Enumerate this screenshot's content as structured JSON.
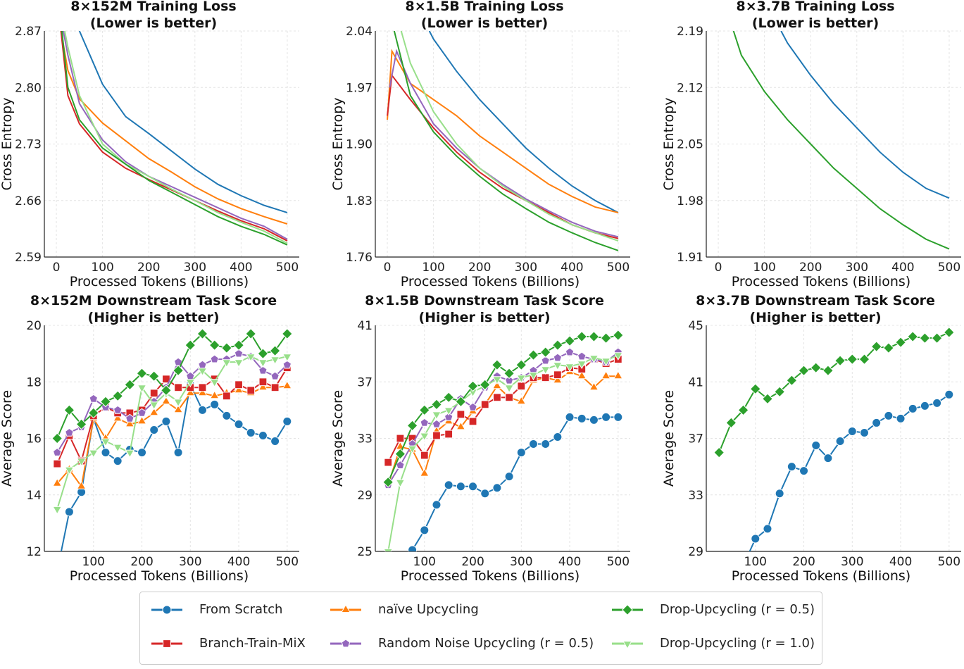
{
  "colors": {
    "from_scratch": "#1f77b4",
    "naive": "#ff7f0e",
    "btx": "#d62728",
    "rnu": "#9467bd",
    "drop05": "#2ca02c",
    "drop10": "#98df8a"
  },
  "legend": [
    {
      "key": "from_scratch",
      "label": "From Scratch",
      "marker": "circle"
    },
    {
      "key": "naive",
      "label": "naïve Upcycling",
      "marker": "triangle"
    },
    {
      "key": "drop05",
      "label": "Drop-Upcycling (r = 0.5)",
      "marker": "diamond"
    },
    {
      "key": "btx",
      "label": "Branch-Train-MiX",
      "marker": "square"
    },
    {
      "key": "rnu",
      "label": "Random Noise Upcycling (r = 0.5)",
      "marker": "pentagon"
    },
    {
      "key": "drop10",
      "label": "Drop-Upcycling (r = 1.0)",
      "marker": "triangle-down"
    }
  ],
  "chart_data": [
    {
      "type": "line",
      "title": "8×152M Training Loss",
      "subtitle": "(Lower is better)",
      "xlabel": "Processed Tokens (Billions)",
      "ylabel": "Cross Entropy",
      "xlim": [
        -26,
        526
      ],
      "ylim": [
        2.59,
        2.87
      ],
      "xticks": [
        0,
        100,
        200,
        300,
        400,
        500
      ],
      "yticks": [
        "2.59",
        "2.66",
        "2.73",
        "2.80",
        "2.87"
      ],
      "grid": true,
      "series": [
        {
          "key": "from_scratch",
          "x": [
            50,
            100,
            150,
            200,
            250,
            300,
            350,
            400,
            450,
            500
          ],
          "y": [
            2.87,
            2.804,
            2.764,
            2.743,
            2.721,
            2.699,
            2.68,
            2.666,
            2.654,
            2.645
          ]
        },
        {
          "key": "naive",
          "x": [
            10,
            25,
            50,
            100,
            150,
            200,
            250,
            300,
            350,
            400,
            450,
            500
          ],
          "y": [
            2.87,
            2.821,
            2.786,
            2.756,
            2.734,
            2.712,
            2.695,
            2.677,
            2.662,
            2.65,
            2.64,
            2.631
          ]
        },
        {
          "key": "btx",
          "x": [
            10,
            25,
            50,
            100,
            150,
            200,
            250,
            300,
            350,
            400,
            450,
            500
          ],
          "y": [
            2.87,
            2.79,
            2.755,
            2.72,
            2.7,
            2.686,
            2.673,
            2.66,
            2.647,
            2.635,
            2.625,
            2.61
          ]
        },
        {
          "key": "rnu",
          "x": [
            15,
            25,
            50,
            100,
            150,
            200,
            250,
            300,
            350,
            400,
            450,
            500
          ],
          "y": [
            2.87,
            2.84,
            2.78,
            2.735,
            2.708,
            2.69,
            2.677,
            2.664,
            2.651,
            2.638,
            2.628,
            2.612
          ]
        },
        {
          "key": "drop10",
          "x": [
            18,
            25,
            50,
            100,
            150,
            200,
            250,
            300,
            350,
            400,
            450,
            500
          ],
          "y": [
            2.87,
            2.85,
            2.79,
            2.73,
            2.705,
            2.69,
            2.674,
            2.66,
            2.645,
            2.633,
            2.622,
            2.607
          ]
        },
        {
          "key": "drop05",
          "x": [
            12,
            25,
            50,
            100,
            150,
            200,
            250,
            300,
            350,
            400,
            450,
            500
          ],
          "y": [
            2.87,
            2.8,
            2.76,
            2.725,
            2.705,
            2.685,
            2.67,
            2.655,
            2.64,
            2.628,
            2.618,
            2.605
          ]
        }
      ]
    },
    {
      "type": "line",
      "title": "8×1.5B Training Loss",
      "subtitle": "(Lower is better)",
      "xlabel": "Processed Tokens (Billions)",
      "ylabel": "Cross Entropy",
      "xlim": [
        -26,
        526
      ],
      "ylim": [
        1.76,
        2.04
      ],
      "xticks": [
        0,
        100,
        200,
        300,
        400,
        500
      ],
      "yticks": [
        "1.76",
        "1.83",
        "1.90",
        "1.97",
        "2.04"
      ],
      "grid": true,
      "series": [
        {
          "key": "from_scratch",
          "x": [
            91,
            100,
            150,
            200,
            250,
            300,
            350,
            400,
            450,
            500
          ],
          "y": [
            2.04,
            2.03,
            1.99,
            1.955,
            1.925,
            1.895,
            1.87,
            1.848,
            1.83,
            1.815
          ]
        },
        {
          "key": "naive",
          "x": [
            0,
            10,
            50,
            100,
            150,
            200,
            250,
            300,
            350,
            400,
            450,
            500
          ],
          "y": [
            1.93,
            2.015,
            1.975,
            1.955,
            1.935,
            1.91,
            1.89,
            1.87,
            1.85,
            1.835,
            1.822,
            1.815
          ]
        },
        {
          "key": "btx",
          "x": [
            0,
            10,
            50,
            100,
            150,
            200,
            250,
            300,
            350,
            400,
            450,
            500
          ],
          "y": [
            1.935,
            1.985,
            1.955,
            1.92,
            1.89,
            1.865,
            1.845,
            1.83,
            1.815,
            1.8,
            1.79,
            1.783
          ]
        },
        {
          "key": "rnu",
          "x": [
            5,
            20,
            50,
            100,
            150,
            200,
            250,
            300,
            350,
            400,
            450,
            500
          ],
          "y": [
            1.97,
            2.015,
            1.975,
            1.925,
            1.895,
            1.87,
            1.85,
            1.832,
            1.817,
            1.803,
            1.792,
            1.785
          ]
        },
        {
          "key": "drop10",
          "x": [
            30,
            50,
            100,
            150,
            200,
            250,
            300,
            350,
            400,
            450,
            500
          ],
          "y": [
            2.04,
            2.0,
            1.94,
            1.9,
            1.87,
            1.848,
            1.83,
            1.813,
            1.8,
            1.79,
            1.78
          ]
        },
        {
          "key": "drop05",
          "x": [
            15,
            50,
            100,
            150,
            200,
            250,
            300,
            350,
            400,
            450,
            500
          ],
          "y": [
            2.04,
            1.96,
            1.915,
            1.885,
            1.86,
            1.838,
            1.82,
            1.803,
            1.79,
            1.778,
            1.768
          ]
        }
      ]
    },
    {
      "type": "line",
      "title": "8×3.7B Training Loss",
      "subtitle": "(Lower is better)",
      "xlabel": "Processed Tokens (Billions)",
      "ylabel": "Cross Entropy",
      "xlim": [
        -26,
        526
      ],
      "ylim": [
        1.91,
        2.19
      ],
      "xticks": [
        0,
        100,
        200,
        300,
        400,
        500
      ],
      "yticks": [
        "1.91",
        "1.98",
        "2.05",
        "2.12",
        "2.19"
      ],
      "grid": true,
      "series": [
        {
          "key": "from_scratch",
          "x": [
            136,
            150,
            200,
            250,
            300,
            350,
            400,
            450,
            500
          ],
          "y": [
            2.19,
            2.175,
            2.135,
            2.1,
            2.07,
            2.04,
            2.015,
            1.995,
            1.983
          ]
        },
        {
          "key": "drop05",
          "x": [
            33,
            50,
            100,
            150,
            200,
            250,
            300,
            350,
            400,
            450,
            500
          ],
          "y": [
            2.19,
            2.16,
            2.115,
            2.08,
            2.05,
            2.02,
            1.995,
            1.97,
            1.95,
            1.932,
            1.92
          ]
        }
      ]
    },
    {
      "type": "line",
      "title": "8×152M Downstream Task Score",
      "subtitle": "(Higher is better)",
      "xlabel": "Processed Tokens (Billions)",
      "ylabel": "Average Score",
      "xlim": [
        -1.5,
        525
      ],
      "ylim": [
        12,
        20
      ],
      "xticks": [
        100,
        200,
        300,
        400,
        500
      ],
      "yticks": [
        "12",
        "14",
        "16",
        "18",
        "20"
      ],
      "grid": true,
      "x": [
        25,
        50,
        75,
        100,
        125,
        150,
        175,
        200,
        225,
        250,
        275,
        300,
        325,
        350,
        375,
        400,
        425,
        450,
        475,
        500
      ],
      "series": [
        {
          "key": "from_scratch",
          "y": [
            11.3,
            13.4,
            14.1,
            16.7,
            15.5,
            15.2,
            15.6,
            15.5,
            16.3,
            16.6,
            15.5,
            17.9,
            17.0,
            17.2,
            16.8,
            16.5,
            16.2,
            16.1,
            15.9,
            16.6
          ]
        },
        {
          "key": "naive",
          "y": [
            14.4,
            14.9,
            14.3,
            16.7,
            16.0,
            16.7,
            16.5,
            16.6,
            16.9,
            17.3,
            17.0,
            17.6,
            17.6,
            17.5,
            17.6,
            17.7,
            17.6,
            17.8,
            17.8,
            17.85
          ]
        },
        {
          "key": "btx",
          "y": [
            15.1,
            16.1,
            15.2,
            16.8,
            17.1,
            16.9,
            16.9,
            17.0,
            17.6,
            18.1,
            17.8,
            17.8,
            17.8,
            18.1,
            17.5,
            17.9,
            17.7,
            18.0,
            17.8,
            18.5
          ]
        },
        {
          "key": "rnu",
          "y": [
            15.5,
            16.2,
            16.4,
            17.4,
            17.1,
            17.0,
            16.7,
            16.9,
            17.3,
            17.8,
            18.7,
            18.2,
            18.6,
            18.8,
            18.8,
            19.0,
            18.9,
            18.4,
            18.2,
            18.6
          ]
        },
        {
          "key": "drop10",
          "y": [
            13.5,
            14.9,
            15.2,
            15.5,
            15.9,
            15.7,
            15.5,
            17.8,
            17.2,
            17.6,
            17.3,
            18.0,
            18.4,
            18.0,
            18.7,
            18.7,
            18.9,
            18.7,
            18.8,
            18.9
          ]
        },
        {
          "key": "drop05",
          "y": [
            16.0,
            17.0,
            16.5,
            16.9,
            17.3,
            17.5,
            17.9,
            18.3,
            18.2,
            17.7,
            18.4,
            19.3,
            19.7,
            19.3,
            19.2,
            19.3,
            19.7,
            19.0,
            19.1,
            19.7
          ]
        }
      ]
    },
    {
      "type": "line",
      "title": "8×1.5B Downstream Task Score",
      "subtitle": "(Higher is better)",
      "xlabel": "Processed Tokens (Billions)",
      "ylabel": "Average Score",
      "xlim": [
        -1.5,
        525
      ],
      "ylim": [
        25,
        41
      ],
      "xticks": [
        100,
        200,
        300,
        400,
        500
      ],
      "yticks": [
        "25",
        "29",
        "33",
        "37",
        "41"
      ],
      "grid": true,
      "x": [
        25,
        50,
        75,
        100,
        125,
        150,
        175,
        200,
        225,
        250,
        275,
        300,
        325,
        350,
        375,
        400,
        425,
        450,
        475,
        500
      ],
      "series": [
        {
          "key": "from_scratch",
          "y": [
            23.5,
            24.3,
            25.1,
            26.5,
            28.3,
            29.7,
            29.6,
            29.6,
            29.1,
            29.5,
            30.3,
            32.0,
            32.6,
            32.6,
            33.1,
            34.5,
            34.4,
            34.3,
            34.5,
            34.5
          ]
        },
        {
          "key": "naive",
          "y": [
            29.7,
            32.4,
            32.2,
            30.5,
            33.5,
            34.2,
            33.8,
            34.9,
            35.4,
            36.7,
            35.9,
            35.6,
            37.1,
            37.3,
            37.1,
            37.7,
            37.4,
            36.6,
            37.4,
            37.4
          ]
        },
        {
          "key": "btx",
          "y": [
            31.3,
            33.0,
            33.0,
            31.8,
            33.2,
            33.3,
            34.7,
            34.2,
            35.4,
            35.9,
            35.9,
            36.7,
            37.3,
            37.3,
            37.5,
            38.0,
            37.9,
            38.6,
            38.3,
            38.6
          ]
        },
        {
          "key": "rnu",
          "y": [
            29.7,
            31.1,
            32.6,
            34.1,
            34.0,
            34.5,
            35.8,
            35.2,
            36.6,
            37.4,
            37.1,
            37.3,
            37.8,
            38.5,
            38.7,
            39.1,
            38.8,
            38.6,
            38.4,
            39.1
          ]
        },
        {
          "key": "drop10",
          "y": [
            25.0,
            29.9,
            32.3,
            33.2,
            34.7,
            35.0,
            35.6,
            36.3,
            36.7,
            37.2,
            36.6,
            37.3,
            37.5,
            37.9,
            38.2,
            38.1,
            38.3,
            38.7,
            38.5,
            38.9
          ]
        },
        {
          "key": "drop05",
          "y": [
            29.9,
            31.9,
            33.9,
            35.0,
            35.4,
            35.9,
            35.6,
            36.7,
            36.8,
            38.2,
            37.6,
            38.2,
            38.9,
            39.1,
            39.6,
            39.9,
            40.2,
            40.2,
            40.1,
            40.3
          ]
        }
      ]
    },
    {
      "type": "line",
      "title": "8×3.7B Downstream Task Score",
      "subtitle": "(Higher is better)",
      "xlabel": "Processed Tokens (Billions)",
      "ylabel": "Average Score",
      "xlim": [
        -1.5,
        525
      ],
      "ylim": [
        29,
        45
      ],
      "xticks": [
        100,
        200,
        300,
        400,
        500
      ],
      "yticks": [
        "29",
        "33",
        "37",
        "41",
        "45"
      ],
      "grid": true,
      "x": [
        25,
        50,
        75,
        100,
        125,
        150,
        175,
        200,
        225,
        250,
        275,
        300,
        325,
        350,
        375,
        400,
        425,
        450,
        475,
        500
      ],
      "series": [
        {
          "key": "from_scratch",
          "y": [
            null,
            null,
            28.0,
            29.9,
            30.6,
            33.1,
            35.0,
            34.7,
            36.5,
            35.6,
            36.8,
            37.5,
            37.4,
            38.1,
            38.6,
            38.4,
            39.1,
            39.3,
            39.5,
            40.1
          ]
        },
        {
          "key": "drop05",
          "y": [
            36.0,
            38.1,
            39.0,
            40.5,
            39.8,
            40.3,
            41.1,
            41.8,
            42.0,
            41.8,
            42.5,
            42.6,
            42.6,
            43.5,
            43.4,
            43.8,
            44.2,
            44.1,
            44.1,
            44.5
          ]
        }
      ]
    }
  ]
}
